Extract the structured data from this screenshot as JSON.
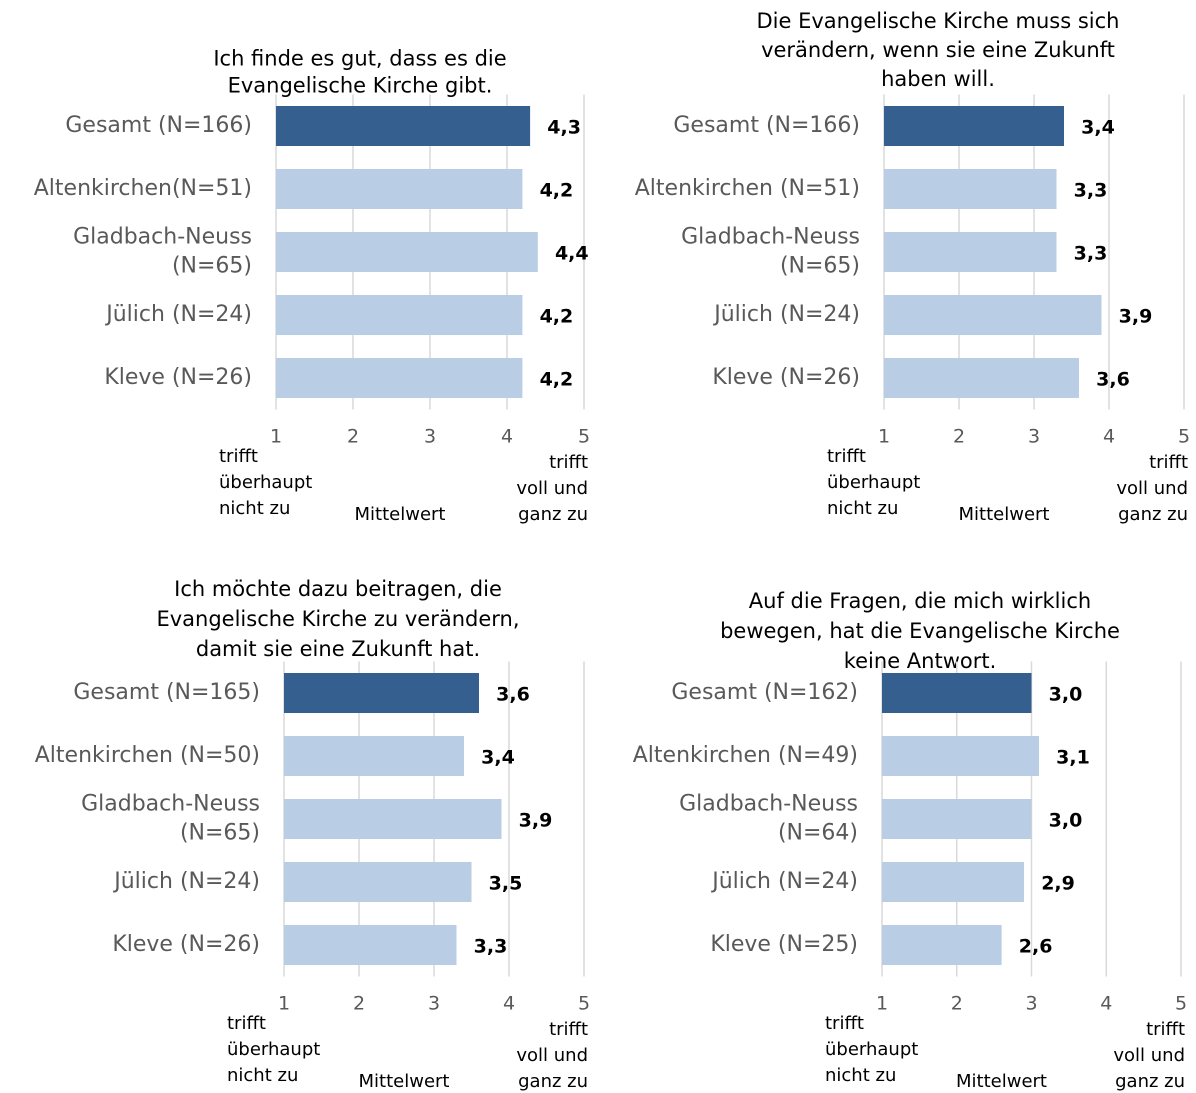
{
  "chart_data": [
    {
      "type": "bar",
      "title": "Ich finde es gut, dass es die\nEvangelische Kirche gibt.",
      "categories": [
        "Gesamt (N=166)",
        "Altenkirchen(N=51)",
        "Gladbach-Neuss\n(N=65)",
        "Jülich (N=24)",
        "Kleve (N=26)"
      ],
      "values": [
        4.3,
        4.2,
        4.4,
        4.2,
        4.2
      ],
      "value_labels": [
        "4,3",
        "4,2",
        "4,4",
        "4,2",
        "4,2"
      ],
      "colors": [
        "#355f8f",
        "#b9cde5",
        "#b9cde5",
        "#b9cde5",
        "#b9cde5"
      ],
      "xlim": [
        1,
        5
      ],
      "xticks": [
        1,
        2,
        3,
        4,
        5
      ],
      "grid": true,
      "x_label": "Mittelwert",
      "left_annotation": "trifft\nüberhaupt\nnicht zu",
      "right_annotation": "trifft\nvoll und\nganz zu"
    },
    {
      "type": "bar",
      "title": "Die Evangelische Kirche muss sich\nverändern, wenn sie eine Zukunft\nhaben will.",
      "categories": [
        "Gesamt (N=166)",
        "Altenkirchen (N=51)",
        "Gladbach-Neuss\n(N=65)",
        "Jülich (N=24)",
        "Kleve (N=26)"
      ],
      "values": [
        3.4,
        3.3,
        3.3,
        3.9,
        3.6
      ],
      "value_labels": [
        "3,4",
        "3,3",
        "3,3",
        "3,9",
        "3,6"
      ],
      "colors": [
        "#355f8f",
        "#b9cde5",
        "#b9cde5",
        "#b9cde5",
        "#b9cde5"
      ],
      "xlim": [
        1,
        5
      ],
      "xticks": [
        1,
        2,
        3,
        4,
        5
      ],
      "grid": true,
      "x_label": "Mittelwert",
      "left_annotation": "trifft\nüberhaupt\nnicht zu",
      "right_annotation": "trifft\nvoll und\nganz zu"
    },
    {
      "type": "bar",
      "title": "Ich möchte dazu beitragen, die\nEvangelische Kirche zu verändern,\ndamit sie eine Zukunft hat.",
      "categories": [
        "Gesamt (N=165)",
        "Altenkirchen (N=50)",
        "Gladbach-Neuss\n(N=65)",
        "Jülich (N=24)",
        "Kleve (N=26)"
      ],
      "values": [
        3.6,
        3.4,
        3.9,
        3.5,
        3.3
      ],
      "value_labels": [
        "3,6",
        "3,4",
        "3,9",
        "3,5",
        "3,3"
      ],
      "colors": [
        "#355f8f",
        "#b9cde5",
        "#b9cde5",
        "#b9cde5",
        "#b9cde5"
      ],
      "xlim": [
        1,
        5
      ],
      "xticks": [
        1,
        2,
        3,
        4,
        5
      ],
      "grid": true,
      "x_label": "Mittelwert",
      "left_annotation": "trifft\nüberhaupt\nnicht zu",
      "right_annotation": "trifft\nvoll und\nganz zu"
    },
    {
      "type": "bar",
      "title": "Auf die Fragen, die mich wirklich\nbewegen, hat die Evangelische Kirche\nkeine Antwort.",
      "categories": [
        "Gesamt (N=162)",
        "Altenkirchen (N=49)",
        "Gladbach-Neuss\n(N=64)",
        "Jülich (N=24)",
        "Kleve (N=25)"
      ],
      "values": [
        3.0,
        3.1,
        3.0,
        2.9,
        2.6
      ],
      "value_labels": [
        "3,0",
        "3,1",
        "3,0",
        "2,9",
        "2,6"
      ],
      "colors": [
        "#355f8f",
        "#b9cde5",
        "#b9cde5",
        "#b9cde5",
        "#b9cde5"
      ],
      "xlim": [
        1,
        5
      ],
      "xticks": [
        1,
        2,
        3,
        4,
        5
      ],
      "grid": true,
      "x_label": "Mittelwert",
      "left_annotation": "trifft\nüberhaupt\nnicht zu",
      "right_annotation": "trifft\nvoll und\nganz zu"
    }
  ]
}
